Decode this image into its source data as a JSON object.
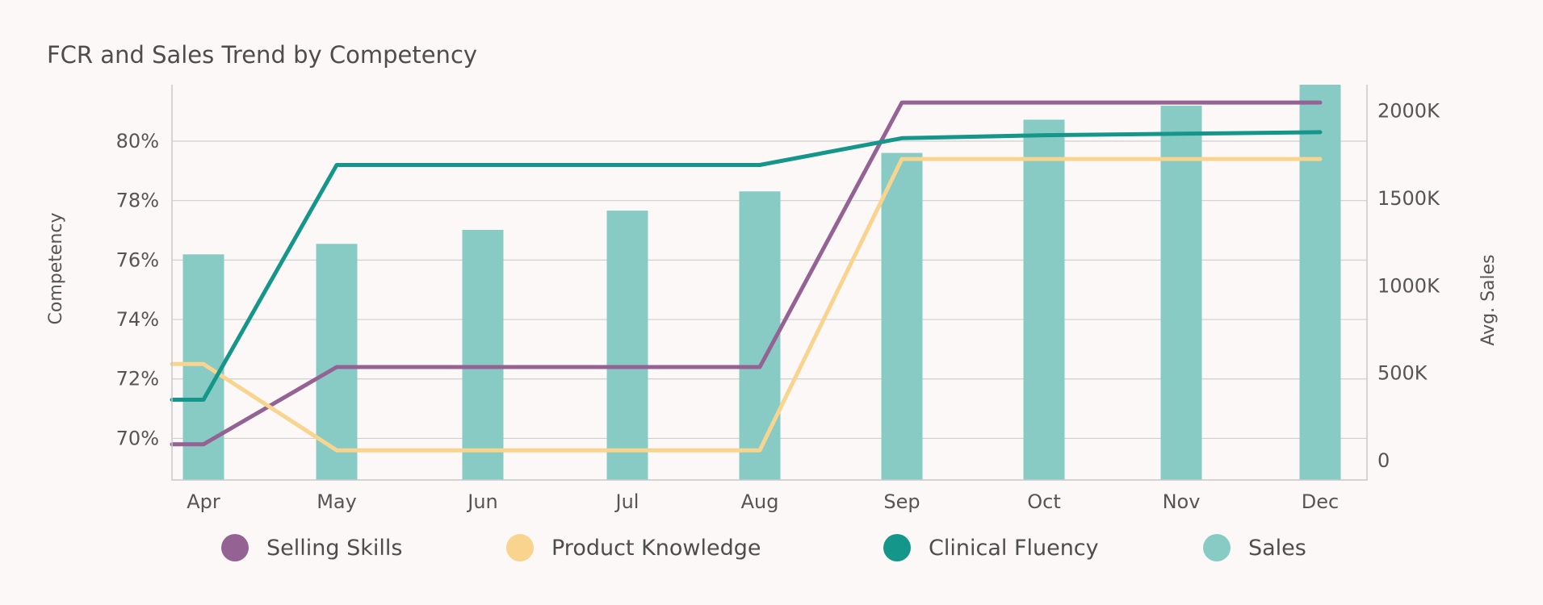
{
  "chart_data": {
    "type": "bar",
    "title": "FCR and Sales Trend by Competency",
    "categories": [
      "Apr",
      "May",
      "Jun",
      "Jul",
      "Aug",
      "Sep",
      "Oct",
      "Nov",
      "Dec"
    ],
    "y_left": {
      "label": "Competency",
      "range": [
        68.6,
        81.9
      ],
      "ticks": [
        70,
        72,
        74,
        76,
        78,
        80
      ],
      "tick_labels": [
        "70%",
        "72%",
        "74%",
        "76%",
        "78%",
        "80%"
      ]
    },
    "y_right": {
      "label": "Avg. Sales",
      "range": [
        -110000,
        2150000
      ],
      "ticks": [
        0,
        500000,
        1000000,
        1500000,
        2000000
      ],
      "tick_labels": [
        "0",
        "500K",
        "1000K",
        "1500K",
        "2000K"
      ]
    },
    "series": [
      {
        "name": "Sales",
        "type": "bar",
        "axis": "right",
        "color": "#88cbc5",
        "values": [
          1180000,
          1240000,
          1320000,
          1430000,
          1540000,
          1760000,
          1950000,
          2030000,
          2150000
        ]
      },
      {
        "name": "Selling Skills",
        "type": "line",
        "axis": "left",
        "color": "#946394",
        "values": [
          69.8,
          72.4,
          72.4,
          72.4,
          72.4,
          81.3,
          81.3,
          81.3,
          81.3
        ]
      },
      {
        "name": "Product Knowledge",
        "type": "line",
        "axis": "left",
        "color": "#f8d48e",
        "values": [
          72.5,
          69.6,
          69.6,
          69.6,
          69.6,
          79.4,
          79.4,
          79.4,
          79.4
        ]
      },
      {
        "name": "Clinical Fluency",
        "type": "line",
        "axis": "left",
        "color": "#15968a",
        "values": [
          71.3,
          79.2,
          79.2,
          79.2,
          79.2,
          80.1,
          80.2,
          80.25,
          80.3
        ]
      }
    ],
    "legend": {
      "position": "bottom",
      "items": [
        {
          "label": "Selling Skills",
          "color": "#946394"
        },
        {
          "label": "Product Knowledge",
          "color": "#f8d48e"
        },
        {
          "label": "Clinical Fluency",
          "color": "#15968a"
        },
        {
          "label": "Sales",
          "color": "#88cbc5"
        }
      ]
    },
    "grid": true
  }
}
